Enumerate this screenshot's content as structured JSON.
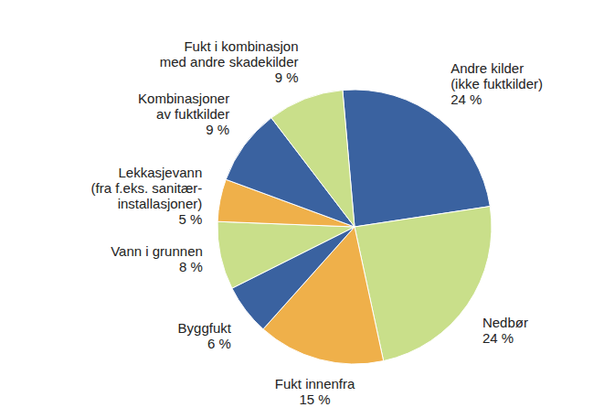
{
  "chart_data": {
    "type": "pie",
    "categories": [
      "Andre kilder\n(ikke fuktkilder)",
      "Nedbør",
      "Fukt innenfra",
      "Byggfukt",
      "Vann i grunnen",
      "Lekkasjevann\n(fra f.eks. sanitær-\ninstallasjoner)",
      "Kombinasjoner\nav fuktkilder",
      "Fukt i kombinasjon\nmed andre skadekilder"
    ],
    "values": [
      24,
      24,
      15,
      6,
      8,
      5,
      9,
      9
    ],
    "value_labels": [
      "24 %",
      "24 %",
      "15 %",
      "6 %",
      "8 %",
      "5 %",
      "9 %",
      "9 %"
    ],
    "colors": [
      "#3a62a0",
      "#c9df8a",
      "#efb04a",
      "#3a62a0",
      "#c9df8a",
      "#efb04a",
      "#3a62a0",
      "#c9df8a"
    ]
  }
}
